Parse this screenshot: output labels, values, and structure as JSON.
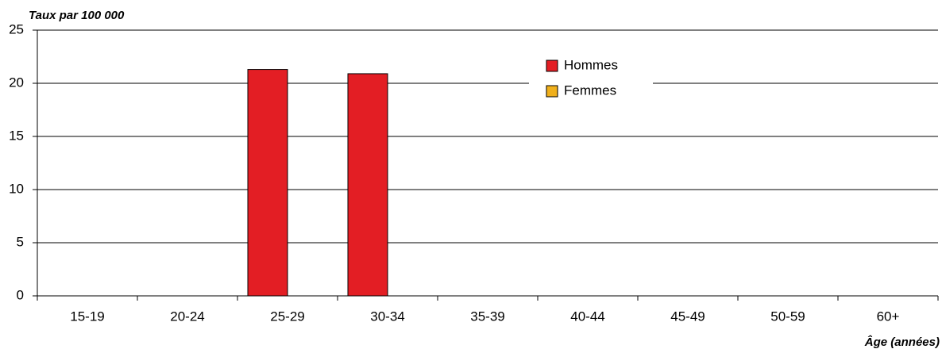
{
  "chart_data": {
    "type": "bar",
    "title": "Taux par 100 000",
    "x_label": "Âge (années)",
    "categories": [
      "15-19",
      "20-24",
      "25-29",
      "30-34",
      "35-39",
      "40-44",
      "45-49",
      "50-59",
      "60+"
    ],
    "series": [
      {
        "name": "Hommes",
        "color": "#e31e24",
        "values": [
          0,
          0,
          21.3,
          20.9,
          0,
          0,
          0,
          0,
          0
        ]
      },
      {
        "name": "Femmes",
        "color": "#f0b01c",
        "values": [
          0,
          0,
          0,
          0,
          0,
          0,
          0,
          0,
          0
        ]
      }
    ],
    "ylim": [
      0,
      25
    ],
    "yticks": [
      0,
      5,
      10,
      15,
      20,
      25
    ],
    "grid": true,
    "legend": "top-center"
  }
}
